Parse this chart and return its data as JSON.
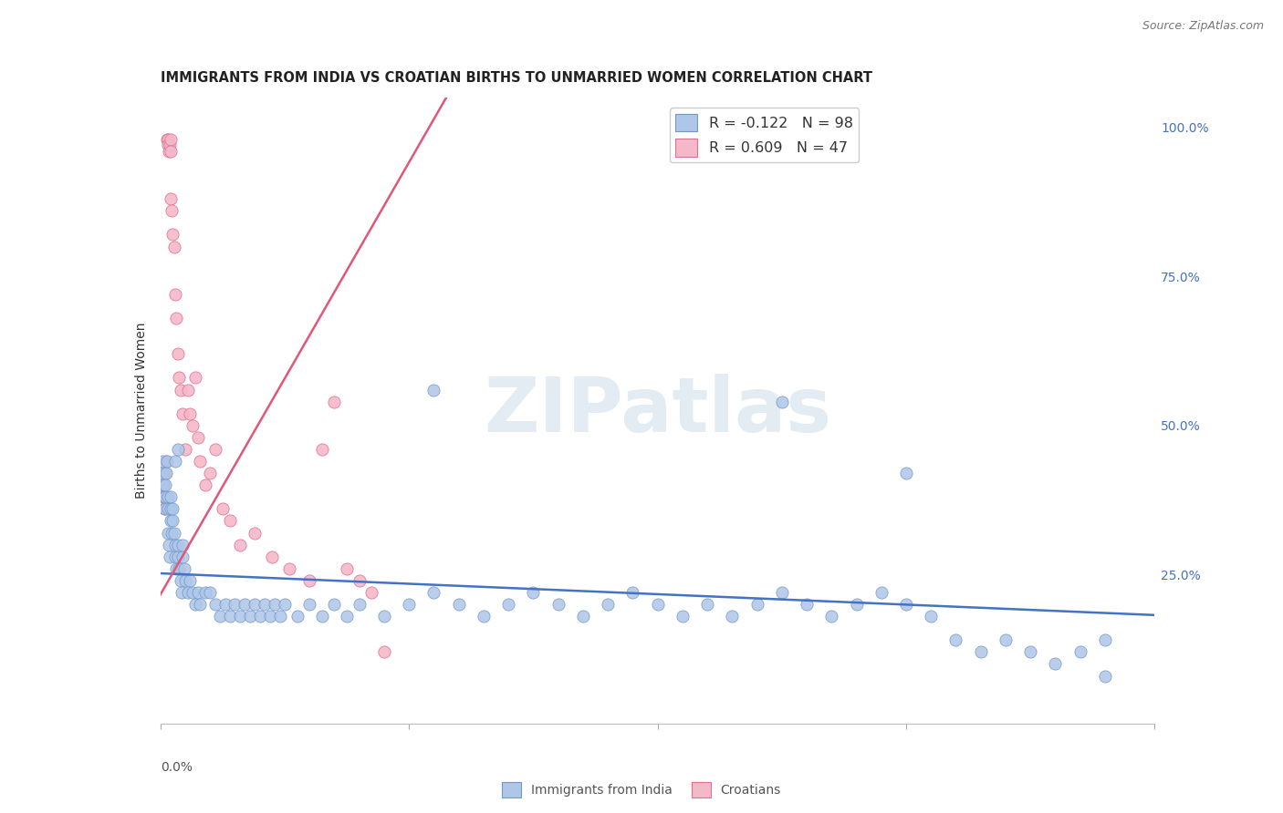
{
  "title": "IMMIGRANTS FROM INDIA VS CROATIAN BIRTHS TO UNMARRIED WOMEN CORRELATION CHART",
  "source": "Source: ZipAtlas.com",
  "ylabel": "Births to Unmarried Women",
  "legend_india_r": "-0.122",
  "legend_india_n": "98",
  "legend_croatia_r": "0.609",
  "legend_croatia_n": "47",
  "india_color": "#aec6e8",
  "croatia_color": "#f4b8c8",
  "india_line_color": "#4472c4",
  "croatia_line_color": "#e05878",
  "watermark": "ZIPatlas",
  "xlim": [
    0.0,
    0.4
  ],
  "ylim": [
    0.0,
    1.05
  ],
  "right_yticks": [
    0.25,
    0.5,
    0.75,
    1.0
  ],
  "right_yticklabels": [
    "25.0%",
    "50.0%",
    "75.0%",
    "100.0%"
  ],
  "india_line_x": [
    0.0,
    0.4
  ],
  "india_line_y": [
    0.252,
    0.182
  ],
  "croatia_line_x": [
    -0.005,
    0.115
  ],
  "croatia_line_y": [
    0.18,
    1.05
  ],
  "india_scatter_x": [
    0.0008,
    0.001,
    0.0012,
    0.0015,
    0.0018,
    0.002,
    0.002,
    0.0022,
    0.0025,
    0.003,
    0.003,
    0.0032,
    0.0035,
    0.0038,
    0.004,
    0.004,
    0.0042,
    0.0045,
    0.005,
    0.005,
    0.0055,
    0.006,
    0.006,
    0.0065,
    0.007,
    0.007,
    0.0075,
    0.008,
    0.0085,
    0.009,
    0.009,
    0.0095,
    0.01,
    0.011,
    0.012,
    0.013,
    0.014,
    0.015,
    0.016,
    0.018,
    0.02,
    0.022,
    0.024,
    0.026,
    0.028,
    0.03,
    0.032,
    0.034,
    0.036,
    0.038,
    0.04,
    0.042,
    0.044,
    0.046,
    0.048,
    0.05,
    0.055,
    0.06,
    0.065,
    0.07,
    0.075,
    0.08,
    0.09,
    0.1,
    0.11,
    0.12,
    0.13,
    0.14,
    0.15,
    0.16,
    0.17,
    0.18,
    0.19,
    0.2,
    0.21,
    0.22,
    0.23,
    0.24,
    0.25,
    0.26,
    0.27,
    0.28,
    0.29,
    0.3,
    0.31,
    0.32,
    0.33,
    0.34,
    0.35,
    0.36,
    0.37,
    0.38,
    0.006,
    0.007,
    0.11,
    0.25,
    0.3,
    0.38
  ],
  "india_scatter_y": [
    0.42,
    0.44,
    0.4,
    0.38,
    0.36,
    0.38,
    0.4,
    0.42,
    0.44,
    0.38,
    0.36,
    0.32,
    0.3,
    0.28,
    0.36,
    0.38,
    0.34,
    0.32,
    0.34,
    0.36,
    0.32,
    0.28,
    0.3,
    0.26,
    0.28,
    0.3,
    0.26,
    0.24,
    0.22,
    0.28,
    0.3,
    0.26,
    0.24,
    0.22,
    0.24,
    0.22,
    0.2,
    0.22,
    0.2,
    0.22,
    0.22,
    0.2,
    0.18,
    0.2,
    0.18,
    0.2,
    0.18,
    0.2,
    0.18,
    0.2,
    0.18,
    0.2,
    0.18,
    0.2,
    0.18,
    0.2,
    0.18,
    0.2,
    0.18,
    0.2,
    0.18,
    0.2,
    0.18,
    0.2,
    0.22,
    0.2,
    0.18,
    0.2,
    0.22,
    0.2,
    0.18,
    0.2,
    0.22,
    0.2,
    0.18,
    0.2,
    0.18,
    0.2,
    0.22,
    0.2,
    0.18,
    0.2,
    0.22,
    0.2,
    0.18,
    0.14,
    0.12,
    0.14,
    0.12,
    0.1,
    0.12,
    0.14,
    0.44,
    0.46,
    0.56,
    0.54,
    0.42,
    0.08
  ],
  "croatia_scatter_x": [
    0.0008,
    0.001,
    0.0012,
    0.0015,
    0.0018,
    0.002,
    0.0022,
    0.0025,
    0.003,
    0.0032,
    0.0035,
    0.0038,
    0.004,
    0.0042,
    0.004,
    0.0045,
    0.005,
    0.0055,
    0.006,
    0.0065,
    0.007,
    0.0075,
    0.008,
    0.009,
    0.01,
    0.011,
    0.012,
    0.013,
    0.014,
    0.015,
    0.016,
    0.018,
    0.02,
    0.022,
    0.025,
    0.028,
    0.032,
    0.038,
    0.045,
    0.052,
    0.06,
    0.065,
    0.07,
    0.075,
    0.08,
    0.085,
    0.09
  ],
  "croatia_scatter_y": [
    0.4,
    0.38,
    0.42,
    0.36,
    0.38,
    0.42,
    0.44,
    0.98,
    0.98,
    0.97,
    0.96,
    0.97,
    0.98,
    0.96,
    0.88,
    0.86,
    0.82,
    0.8,
    0.72,
    0.68,
    0.62,
    0.58,
    0.56,
    0.52,
    0.46,
    0.56,
    0.52,
    0.5,
    0.58,
    0.48,
    0.44,
    0.4,
    0.42,
    0.46,
    0.36,
    0.34,
    0.3,
    0.32,
    0.28,
    0.26,
    0.24,
    0.46,
    0.54,
    0.26,
    0.24,
    0.22,
    0.12
  ],
  "bg_color": "#ffffff",
  "grid_color": "#dddddd"
}
